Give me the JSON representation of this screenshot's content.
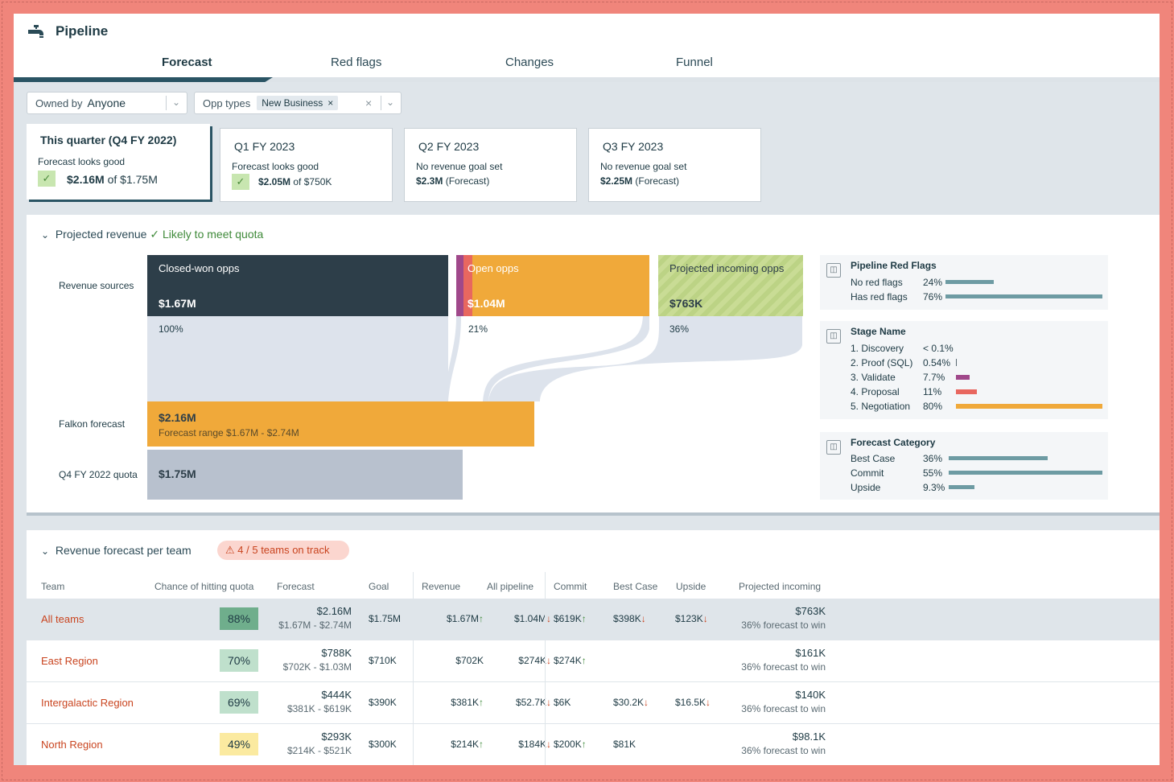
{
  "header": {
    "title": "Pipeline",
    "icon": "faucet-icon"
  },
  "tabs": [
    {
      "label": "Forecast",
      "active": true
    },
    {
      "label": "Red flags",
      "active": false
    },
    {
      "label": "Changes",
      "active": false
    },
    {
      "label": "Funnel",
      "active": false
    }
  ],
  "filters": {
    "owned_label": "Owned by",
    "owned_value": "Anyone",
    "opp_label": "Opp types",
    "opp_chip": "New Business"
  },
  "quarters": [
    {
      "title": "This quarter (Q4 FY 2022)",
      "status": "Forecast looks good",
      "value": "$2.16M",
      "of": "of $1.75M"
    },
    {
      "title": "Q1 FY 2023",
      "status": "Forecast looks good",
      "value": "$2.05M",
      "of": "of $750K"
    },
    {
      "title": "Q2 FY 2023",
      "status": "No revenue goal set",
      "value": "$2.3M",
      "of": "(Forecast)"
    },
    {
      "title": "Q3 FY 2023",
      "status": "No revenue goal set",
      "value": "$2.25M",
      "of": "(Forecast)"
    }
  ],
  "projected": {
    "title": "Projected revenue",
    "status": "Likely to meet quota",
    "row_sources": "Revenue sources",
    "row_forecast": "Falkon forecast",
    "row_quota": "Q4 FY 2022 quota",
    "closed_label": "Closed-won opps",
    "closed_value": "$1.67M",
    "closed_pct": "100%",
    "open_label": "Open opps",
    "open_value": "$1.04M",
    "open_pct": "21%",
    "incoming_label": "Projected incoming opps",
    "incoming_value": "$763K",
    "incoming_pct": "36%",
    "forecast_value": "$2.16M",
    "forecast_range": "Forecast range $1.67M - $2.74M",
    "quota_value": "$1.75M"
  },
  "side": {
    "red_flags": {
      "title": "Pipeline Red Flags",
      "items": [
        {
          "label": "No red flags",
          "value": "24%",
          "fraction": 0.24,
          "color": "#6d9ba3"
        },
        {
          "label": "Has red flags",
          "value": "76%",
          "fraction": 0.76,
          "color": "#6d9ba3"
        }
      ]
    },
    "stage": {
      "title": "Stage Name",
      "items": [
        {
          "label": "1. Discovery",
          "value": "< 0.1%",
          "fraction": 0.0,
          "color": "#9b4d8a"
        },
        {
          "label": "2. Proof (SQL)",
          "value": "0.54%",
          "fraction": 0.005,
          "color": "#9b4d8a"
        },
        {
          "label": "3. Validate",
          "value": "7.7%",
          "fraction": 0.077,
          "color": "#a0488a"
        },
        {
          "label": "4. Proposal",
          "value": "11%",
          "fraction": 0.11,
          "color": "#e8675f"
        },
        {
          "label": "5. Negotiation",
          "value": "80%",
          "fraction": 0.8,
          "color": "#f0a93a"
        }
      ]
    },
    "category": {
      "title": "Forecast Category",
      "items": [
        {
          "label": "Best Case",
          "value": "36%",
          "fraction": 0.36,
          "color": "#6d9ba3"
        },
        {
          "label": "Commit",
          "value": "55%",
          "fraction": 0.55,
          "color": "#6d9ba3"
        },
        {
          "label": "Upside",
          "value": "9.3%",
          "fraction": 0.093,
          "color": "#6d9ba3"
        }
      ]
    }
  },
  "teams": {
    "title": "Revenue forecast per team",
    "badge": "4 / 5 teams on track",
    "columns": [
      "Team",
      "Chance of hitting quota",
      "Forecast",
      "Goal",
      "Revenue",
      "All pipeline",
      "Commit",
      "Best Case",
      "Upside",
      "Projected incoming"
    ],
    "rows": [
      {
        "team": "All teams",
        "chance": "88%",
        "chance_color": "#6fae8c",
        "forecast": "$2.16M",
        "range": "$1.67M - $2.74M",
        "goal": "$1.75M",
        "revenue": "$1.67M",
        "revenue_dir": "up",
        "pipeline": "$1.04M",
        "pipeline_dir": "down",
        "commit": "$619K",
        "commit_dir": "up",
        "best": "$398K",
        "best_dir": "down",
        "upside": "$123K",
        "upside_dir": "down",
        "incoming": "$763K",
        "incoming_sub": "36% forecast to win"
      },
      {
        "team": "East Region",
        "chance": "70%",
        "chance_color": "#bfe0cc",
        "forecast": "$788K",
        "range": "$702K - $1.03M",
        "goal": "$710K",
        "revenue": "$702K",
        "revenue_dir": "",
        "pipeline": "$274K",
        "pipeline_dir": "down",
        "commit": "$274K",
        "commit_dir": "up",
        "best": "",
        "best_dir": "",
        "upside": "",
        "upside_dir": "",
        "incoming": "$161K",
        "incoming_sub": "36% forecast to win"
      },
      {
        "team": "Intergalactic Region",
        "chance": "69%",
        "chance_color": "#bfe0cc",
        "forecast": "$444K",
        "range": "$381K - $619K",
        "goal": "$390K",
        "revenue": "$381K",
        "revenue_dir": "up",
        "pipeline": "$52.7K",
        "pipeline_dir": "down",
        "commit": "$6K",
        "commit_dir": "",
        "best": "$30.2K",
        "best_dir": "down",
        "upside": "$16.5K",
        "upside_dir": "down",
        "incoming": "$140K",
        "incoming_sub": "36% forecast to win"
      },
      {
        "team": "North Region",
        "chance": "49%",
        "chance_color": "#fbeaa0",
        "forecast": "$293K",
        "range": "$214K - $521K",
        "goal": "$300K",
        "revenue": "$214K",
        "revenue_dir": "up",
        "pipeline": "$184K",
        "pipeline_dir": "down",
        "commit": "$200K",
        "commit_dir": "up",
        "best": "$81K",
        "best_dir": "",
        "upside": "",
        "upside_dir": "",
        "incoming": "$98.1K",
        "incoming_sub": "36% forecast to win"
      }
    ]
  }
}
